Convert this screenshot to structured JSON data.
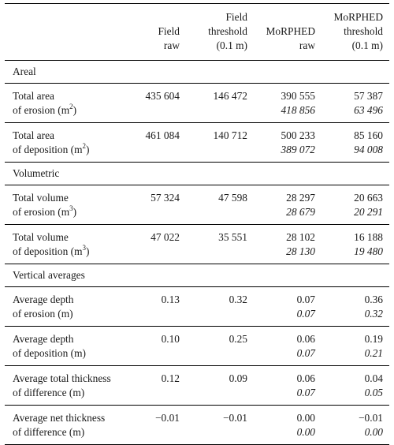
{
  "headers": [
    [
      ""
    ],
    [
      "Field",
      "raw"
    ],
    [
      "Field",
      "threshold",
      "(0.1 m)"
    ],
    [
      "MoRPHED",
      "raw"
    ],
    [
      "MoRPHED",
      "threshold",
      "(0.1 m)"
    ]
  ],
  "sections": [
    {
      "title": "Areal",
      "rows": [
        {
          "label": [
            "Total area",
            "of erosion (m",
            "2",
            ")"
          ],
          "field_raw": "435 604",
          "field_threshold": "146 472",
          "morphed_raw": [
            "390 555",
            "418 856"
          ],
          "morphed_threshold": [
            "57 387",
            "63 496"
          ]
        },
        {
          "label": [
            "Total area",
            "of deposition (m",
            "2",
            ")"
          ],
          "field_raw": "461 084",
          "field_threshold": "140 712",
          "morphed_raw": [
            "500 233",
            "389 072"
          ],
          "morphed_threshold": [
            "85 160",
            "94 008"
          ]
        }
      ]
    },
    {
      "title": "Volumetric",
      "rows": [
        {
          "label": [
            "Total volume",
            "of erosion (m",
            "3",
            ")"
          ],
          "field_raw": "57 324",
          "field_threshold": "47 598",
          "morphed_raw": [
            "28 297",
            "28 679"
          ],
          "morphed_threshold": [
            "20 663",
            "20 291"
          ]
        },
        {
          "label": [
            "Total volume",
            "of deposition (m",
            "3",
            ")"
          ],
          "field_raw": "47 022",
          "field_threshold": "35 551",
          "morphed_raw": [
            "28 102",
            "28 130"
          ],
          "morphed_threshold": [
            "16 188",
            "19 480"
          ]
        }
      ]
    },
    {
      "title": "Vertical averages",
      "rows": [
        {
          "label": [
            "Average depth",
            "of erosion (m)",
            "",
            ""
          ],
          "field_raw": "0.13",
          "field_threshold": "0.32",
          "morphed_raw": [
            "0.07",
            "0.07"
          ],
          "morphed_threshold": [
            "0.36",
            "0.32"
          ]
        },
        {
          "label": [
            "Average depth",
            "of deposition (m)",
            "",
            ""
          ],
          "field_raw": "0.10",
          "field_threshold": "0.25",
          "morphed_raw": [
            "0.06",
            "0.07"
          ],
          "morphed_threshold": [
            "0.19",
            "0.21"
          ]
        },
        {
          "label": [
            "Average total thickness",
            "of difference (m)",
            "",
            ""
          ],
          "field_raw": "0.12",
          "field_threshold": "0.09",
          "morphed_raw": [
            "0.06",
            "0.07"
          ],
          "morphed_threshold": [
            "0.04",
            "0.05"
          ]
        },
        {
          "label": [
            "Average net thickness",
            "of difference (m)",
            "",
            ""
          ],
          "field_raw": "−0.01",
          "field_threshold": "−0.01",
          "morphed_raw": [
            "0.00",
            "0.00"
          ],
          "morphed_threshold": [
            "−0.01",
            "0.00"
          ]
        }
      ]
    }
  ]
}
